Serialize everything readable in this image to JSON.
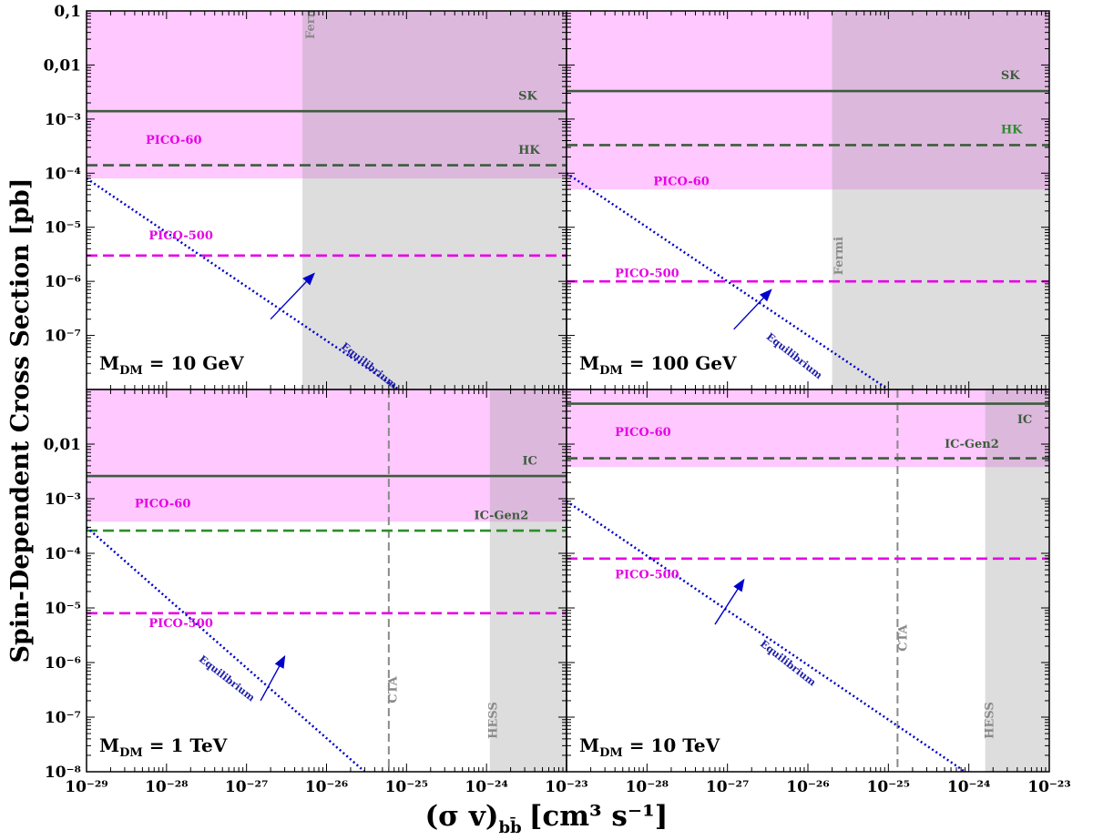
{
  "figure": {
    "ylabel": "Spin-Dependent Cross Section [pb]",
    "xlabel_main": "(σ v)",
    "xlabel_sub": "bb̄",
    "xlabel_unit": "[cm³ s⁻¹]"
  },
  "chart_data": [
    {
      "type": "line",
      "panel": "top-left",
      "mass_label": {
        "prefix": "M",
        "sub": "DM",
        "text": " = 10 GeV"
      },
      "xscale": "log",
      "yscale": "log",
      "xlim": [
        1e-29,
        1e-23
      ],
      "ylim": [
        1e-08,
        0.1
      ],
      "yticks": [
        {
          "v": 0.1,
          "t": "0,1"
        },
        {
          "v": 0.01,
          "t": "0,01"
        },
        {
          "v": 0.001,
          "t": "10⁻³"
        },
        {
          "v": 0.0001,
          "t": "10⁻⁴"
        },
        {
          "v": 1e-05,
          "t": "10⁻⁵"
        },
        {
          "v": 1e-06,
          "t": "10⁻⁶"
        },
        {
          "v": 1e-07,
          "t": "10⁻⁷"
        }
      ],
      "xticks": [],
      "regions": [
        {
          "name": "PICO-60",
          "kind": "hband",
          "y": [
            8e-05,
            0.1
          ],
          "color": "#ffc8ff"
        },
        {
          "name": "Fermi",
          "kind": "vband",
          "x": [
            5e-27,
            1e-23
          ],
          "color": "#dddddd"
        }
      ],
      "hlines": [
        {
          "name": "SK",
          "y": 0.0014,
          "style": "solid",
          "color": "#3d5c3d"
        },
        {
          "name": "HK",
          "y": 0.00014,
          "style": "dashed",
          "color": "#3d5c3d"
        },
        {
          "name": "PICO-500",
          "y": 3e-06,
          "style": "dashed",
          "color": "#e600e6"
        }
      ],
      "vlines": [],
      "equilibrium": {
        "name": "Equilibrium",
        "points": [
          [
            1e-29,
            8e-05
          ],
          [
            1e-25,
            8e-09
          ]
        ]
      },
      "labels": [
        {
          "text": "Fermi",
          "x": 7e-27,
          "y": 0.03,
          "color": "#8a8a8a",
          "rot": -90
        },
        {
          "text": "SK",
          "x": 2.5e-24,
          "y": 0.0023,
          "color": "#3d5c3d",
          "rot": 0
        },
        {
          "text": "HK",
          "x": 2.5e-24,
          "y": 0.00023,
          "color": "#3d5c3d",
          "rot": 0
        },
        {
          "text": "PICO-60",
          "x": 5.5e-29,
          "y": 0.00035,
          "color": "#e600e6",
          "rot": 0
        },
        {
          "text": "PICO-500",
          "x": 6e-29,
          "y": 6e-06,
          "color": "#e600e6",
          "rot": 0
        },
        {
          "text": "Equilibrium",
          "x": 1.5e-26,
          "y": 6e-08,
          "color": "#2020aa",
          "rot": 38
        }
      ],
      "arrow": {
        "from": [
          2e-27,
          2e-07
        ],
        "to": [
          7e-27,
          1.4e-06
        ]
      }
    },
    {
      "type": "line",
      "panel": "top-right",
      "mass_label": {
        "prefix": "M",
        "sub": "DM",
        "text": " = 100 GeV"
      },
      "xscale": "log",
      "yscale": "log",
      "xlim": [
        1e-29,
        1e-23
      ],
      "ylim": [
        1e-08,
        0.1
      ],
      "yticks": [],
      "xticks": [],
      "regions": [
        {
          "name": "PICO-60",
          "kind": "hband",
          "y": [
            5e-05,
            0.1
          ],
          "color": "#ffc8ff"
        },
        {
          "name": "Fermi",
          "kind": "vband",
          "x": [
            2e-26,
            1e-23
          ],
          "color": "#dddddd"
        }
      ],
      "hlines": [
        {
          "name": "SK",
          "y": 0.0033,
          "style": "solid",
          "color": "#3d5c3d"
        },
        {
          "name": "HK",
          "y": 0.00033,
          "style": "dashed",
          "color": "#3d5c3d"
        },
        {
          "name": "PICO-500",
          "y": 1e-06,
          "style": "dashed",
          "color": "#e600e6"
        }
      ],
      "vlines": [],
      "equilibrium": {
        "name": "Equilibrium",
        "points": [
          [
            1e-29,
            0.0001
          ],
          [
            1e-24,
            1e-09
          ]
        ]
      },
      "labels": [
        {
          "text": "Fermi",
          "x": 2.7e-26,
          "y": 1.3e-06,
          "color": "#8a8a8a",
          "rot": -90
        },
        {
          "text": "SK",
          "x": 2.5e-24,
          "y": 0.0055,
          "color": "#3d5c3d",
          "rot": 0
        },
        {
          "text": "HK",
          "x": 2.5e-24,
          "y": 0.00055,
          "color": "#2e8b2e",
          "rot": 0
        },
        {
          "text": "PICO-60",
          "x": 1.2e-28,
          "y": 6e-05,
          "color": "#e600e6",
          "rot": 0
        },
        {
          "text": "PICO-500",
          "x": 4e-29,
          "y": 1.2e-06,
          "color": "#e600e6",
          "rot": 0
        },
        {
          "text": "Equilibrium",
          "x": 3e-27,
          "y": 9e-08,
          "color": "#2020aa",
          "rot": 38
        }
      ],
      "arrow": {
        "from": [
          1.2e-27,
          1.3e-07
        ],
        "to": [
          3.5e-27,
          7e-07
        ]
      }
    },
    {
      "type": "line",
      "panel": "bottom-left",
      "mass_label": {
        "prefix": "M",
        "sub": "DM",
        "text": " = 1 TeV"
      },
      "xscale": "log",
      "yscale": "log",
      "xlim": [
        1e-29,
        1e-23
      ],
      "ylim": [
        1e-08,
        0.1
      ],
      "yticks": [
        {
          "v": 0.01,
          "t": "0,01"
        },
        {
          "v": 0.001,
          "t": "10⁻³"
        },
        {
          "v": 0.0001,
          "t": "10⁻⁴"
        },
        {
          "v": 1e-05,
          "t": "10⁻⁵"
        },
        {
          "v": 1e-06,
          "t": "10⁻⁶"
        },
        {
          "v": 1e-07,
          "t": "10⁻⁷"
        },
        {
          "v": 1e-08,
          "t": "10⁻⁸"
        }
      ],
      "xticks": [
        {
          "v": 1e-29,
          "t": "10⁻²⁹"
        },
        {
          "v": 1e-28,
          "t": "10⁻²⁸"
        },
        {
          "v": 1e-27,
          "t": "10⁻²⁷"
        },
        {
          "v": 1e-26,
          "t": "10⁻²⁶"
        },
        {
          "v": 1e-25,
          "t": "10⁻²⁵"
        },
        {
          "v": 1e-24,
          "t": "10⁻²⁴"
        },
        {
          "v": 1e-23,
          "t": "10⁻²³"
        }
      ],
      "regions": [
        {
          "name": "PICO-60",
          "kind": "hband",
          "y": [
            0.00038,
            0.1
          ],
          "color": "#ffc8ff"
        },
        {
          "name": "HESS",
          "kind": "vband",
          "x": [
            1.1e-24,
            1e-23
          ],
          "color": "#dddddd"
        }
      ],
      "hlines": [
        {
          "name": "IC",
          "y": 0.0026,
          "style": "solid",
          "color": "#3d5c3d"
        },
        {
          "name": "IC-Gen2",
          "y": 0.00026,
          "style": "dashed",
          "color": "#2e8b2e"
        },
        {
          "name": "PICO-500",
          "y": 8e-06,
          "style": "dashed",
          "color": "#e600e6"
        }
      ],
      "vlines": [
        {
          "name": "CTA",
          "x": 6e-26,
          "color": "#8a8a8a"
        }
      ],
      "equilibrium": {
        "name": "Equilibrium",
        "points": [
          [
            1e-29,
            0.0003
          ],
          [
            3e-26,
            1e-08
          ]
        ]
      },
      "labels": [
        {
          "text": "CTA",
          "x": 7.5e-26,
          "y": 1.8e-07,
          "color": "#8a8a8a",
          "rot": -90
        },
        {
          "text": "HESS",
          "x": 1.35e-24,
          "y": 4e-08,
          "color": "#8a8a8a",
          "rot": -90
        },
        {
          "text": "IC",
          "x": 2.8e-24,
          "y": 0.0042,
          "color": "#3d5c3d",
          "rot": 0
        },
        {
          "text": "IC-Gen2",
          "x": 7e-25,
          "y": 0.00042,
          "color": "#3d5c3d",
          "rot": 0
        },
        {
          "text": "PICO-60",
          "x": 4e-29,
          "y": 0.0007,
          "color": "#e600e6",
          "rot": 0
        },
        {
          "text": "PICO-500",
          "x": 6e-29,
          "y": 4.5e-06,
          "color": "#e600e6",
          "rot": 0
        },
        {
          "text": "Equilibrium",
          "x": 2.5e-28,
          "y": 1.1e-06,
          "color": "#2020aa",
          "rot": 38
        }
      ],
      "arrow": {
        "from": [
          1.5e-27,
          2e-07
        ],
        "to": [
          3e-27,
          1.3e-06
        ]
      }
    },
    {
      "type": "line",
      "panel": "bottom-right",
      "mass_label": {
        "prefix": "M",
        "sub": "DM",
        "text": " = 10 TeV"
      },
      "xscale": "log",
      "yscale": "log",
      "xlim": [
        1e-29,
        1e-23
      ],
      "ylim": [
        1e-08,
        0.1
      ],
      "yticks": [],
      "xticks": [
        {
          "v": 1e-28,
          "t": "10⁻²⁸"
        },
        {
          "v": 1e-27,
          "t": "10⁻²⁷"
        },
        {
          "v": 1e-26,
          "t": "10⁻²⁶"
        },
        {
          "v": 1e-25,
          "t": "10⁻²⁵"
        },
        {
          "v": 1e-24,
          "t": "10⁻²⁴"
        },
        {
          "v": 1e-23,
          "t": "10⁻²³"
        }
      ],
      "regions": [
        {
          "name": "PICO-60",
          "kind": "hband",
          "y": [
            0.0038,
            0.1
          ],
          "color": "#ffc8ff"
        },
        {
          "name": "HESS",
          "kind": "vband",
          "x": [
            1.6e-24,
            1e-23
          ],
          "color": "#dddddd"
        }
      ],
      "hlines": [
        {
          "name": "IC",
          "y": 0.055,
          "style": "solid",
          "color": "#3d5c3d"
        },
        {
          "name": "IC-Gen2",
          "y": 0.0055,
          "style": "dashed",
          "color": "#3d5c3d"
        },
        {
          "name": "PICO-500",
          "y": 8e-05,
          "style": "dashed",
          "color": "#e600e6"
        }
      ],
      "vlines": [
        {
          "name": "CTA",
          "x": 1.3e-25,
          "color": "#8a8a8a"
        }
      ],
      "equilibrium": {
        "name": "Equilibrium",
        "points": [
          [
            1e-29,
            0.0009
          ],
          [
            9e-25,
            1e-08
          ]
        ]
      },
      "labels": [
        {
          "text": "CTA",
          "x": 1.7e-25,
          "y": 1.6e-06,
          "color": "#8a8a8a",
          "rot": -90
        },
        {
          "text": "HESS",
          "x": 2e-24,
          "y": 4e-08,
          "color": "#8a8a8a",
          "rot": -90
        },
        {
          "text": "IC",
          "x": 4e-24,
          "y": 0.024,
          "color": "#3d5c3d",
          "rot": 0
        },
        {
          "text": "IC-Gen2",
          "x": 5e-25,
          "y": 0.0085,
          "color": "#3d5c3d",
          "rot": 0
        },
        {
          "text": "PICO-60",
          "x": 4e-29,
          "y": 0.014,
          "color": "#e600e6",
          "rot": 0
        },
        {
          "text": "PICO-500",
          "x": 4e-29,
          "y": 3.5e-05,
          "color": "#e600e6",
          "rot": 0
        },
        {
          "text": "Equilibrium",
          "x": 2.5e-27,
          "y": 2.1e-06,
          "color": "#2020aa",
          "rot": 38
        }
      ],
      "arrow": {
        "from": [
          7e-28,
          5e-06
        ],
        "to": [
          1.6e-27,
          3.3e-05
        ]
      }
    }
  ]
}
